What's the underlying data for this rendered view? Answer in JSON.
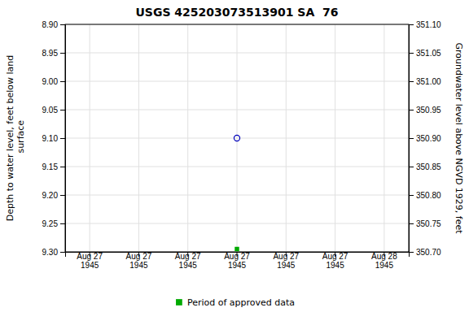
{
  "chart_data": {
    "type": "scatter",
    "title": "USGS 425203073513901 SA  76",
    "ylabel": "Depth to water level, feet below land\n surface",
    "y2label": "Groundwater level above NGVD 1929, feet",
    "categories": [
      "Aug 27\n1945",
      "Aug 27\n1945",
      "Aug 27\n1945",
      "Aug 27\n1945",
      "Aug 27\n1945",
      "Aug 27\n1945",
      "Aug 28\n1945"
    ],
    "series": [
      {
        "color": "#0000bb",
        "marker": "circle",
        "values": [
          null,
          null,
          null,
          9.1,
          null,
          null,
          null
        ]
      },
      {
        "name": "Period of approved data",
        "color": "#00aa00",
        "marker": "square",
        "values": [
          null,
          null,
          null,
          9.295,
          null,
          null,
          null
        ]
      }
    ],
    "ylim": [
      9.3,
      8.9
    ],
    "yticks": [
      {
        "value": 8.9,
        "label": "8.90"
      },
      8.95,
      {
        "value": 9.0,
        "label": "9.00"
      },
      9.05,
      {
        "value": 9.1,
        "label": "9.10"
      },
      9.15,
      {
        "value": 9.2,
        "label": "9.20"
      },
      9.25,
      {
        "value": 9.3,
        "label": "9.30"
      }
    ],
    "y2lim": [
      350.7,
      351.1
    ],
    "y2ticks": [
      {
        "value": 350.7,
        "label": "350.70"
      },
      350.75,
      {
        "value": 350.8,
        "label": "350.80"
      },
      350.85,
      {
        "value": 350.9,
        "label": "350.90"
      },
      350.95,
      {
        "value": 351.0,
        "label": "351.00"
      },
      351.05,
      {
        "value": 351.1,
        "label": "351.10"
      }
    ],
    "grid": true,
    "legend": "bottom"
  }
}
